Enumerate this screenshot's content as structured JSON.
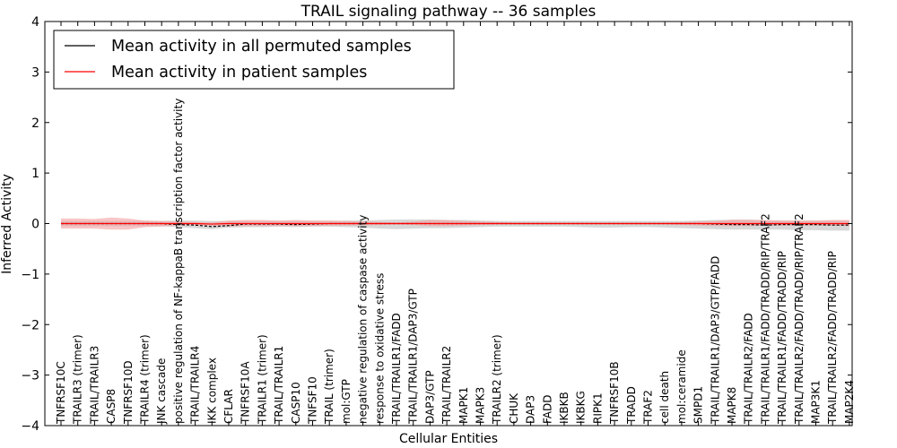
{
  "chart_data": {
    "type": "line",
    "title": "TRAIL signaling pathway -- 36 samples",
    "xlabel": "Cellular Entities",
    "ylabel": "Inferred Activity",
    "ylim": [
      -4,
      4
    ],
    "yticks": [
      -4,
      -3,
      -2,
      -1,
      0,
      1,
      2,
      3,
      4
    ],
    "ytick_labels": [
      "−4",
      "−3",
      "−2",
      "−1",
      "0",
      "1",
      "2",
      "3",
      "4"
    ],
    "grid": false,
    "legend_position": "top-left",
    "categories": [
      "TNFRSF10C",
      "TRAILR3 (trimer)",
      "TRAIL/TRAILR3",
      "CASP8",
      "TNFRSF10D",
      "TRAILR4 (trimer)",
      "JNK cascade",
      "positive regulation of NF-kappaB transcription factor activity",
      "TRAIL/TRAILR4",
      "IKK complex",
      "CFLAR",
      "TNFRSF10A",
      "TRAILR1 (trimer)",
      "TRAIL/TRAILR1",
      "CASP10",
      "TNFSF10",
      "TRAIL (trimer)",
      "mol:GTP",
      "negative regulation of caspase activity",
      "response to oxidative stress",
      "TRAIL/TRAILR1/FADD",
      "TRAIL/TRAILR1/DAP3/GTP",
      "DAP3/GTP",
      "TRAIL/TRAILR2",
      "MAPK1",
      "MAPK3",
      "TRAILR2 (trimer)",
      "CHUK",
      "DAP3",
      "FADD",
      "IKBKB",
      "IKBKG",
      "RIPK1",
      "TNFRSF10B",
      "TRADD",
      "TRAF2",
      "cell death",
      "mol:ceramide",
      "SMPD1",
      "TRAIL/TRAILR1/DAP3/GTP/FADD",
      "MAPK8",
      "TRAIL/TRAILR2/FADD",
      "TRAIL/TRAILR1/FADD/TRADD/RIP/TRAF2",
      "TRAIL/TRAILR1/FADD/TRADD/RIP",
      "TRAIL/TRAILR2/FADD/TRADD/RIP/TRAF2",
      "MAP3K1",
      "TRAIL/TRAILR2/FADD/TRADD/RIP",
      "MAP2K4"
    ],
    "series": [
      {
        "name": "Mean activity in all permuted samples",
        "color": "#000000",
        "band_color": "#c8c8c8",
        "values": [
          0,
          0,
          0,
          0,
          0,
          0,
          0,
          -0.02,
          -0.03,
          -0.06,
          -0.04,
          -0.01,
          -0.01,
          -0.01,
          -0.02,
          -0.01,
          0,
          0,
          0,
          0,
          0,
          0,
          0,
          0,
          0,
          0,
          0,
          0,
          0,
          0,
          0,
          0,
          0,
          0,
          0,
          0,
          0,
          0,
          0,
          -0.01,
          -0.02,
          -0.02,
          -0.03,
          -0.02,
          -0.02,
          -0.02,
          -0.03,
          -0.03
        ],
        "band_upper": [
          0.05,
          0.05,
          0.05,
          0.05,
          0.05,
          0.05,
          0.05,
          0.06,
          0.06,
          0.05,
          0.05,
          0.05,
          0.05,
          0.05,
          0.05,
          0.05,
          0.05,
          0.06,
          0.06,
          0.07,
          0.08,
          0.08,
          0.08,
          0.07,
          0.07,
          0.06,
          0.05,
          0.05,
          0.05,
          0.05,
          0.05,
          0.05,
          0.05,
          0.05,
          0.05,
          0.05,
          0.05,
          0.05,
          0.06,
          0.07,
          0.07,
          0.07,
          0.06,
          0.06,
          0.06,
          0.06,
          0.06,
          0.06
        ],
        "band_lower": [
          -0.05,
          -0.05,
          -0.05,
          -0.05,
          -0.05,
          -0.05,
          -0.05,
          -0.07,
          -0.09,
          -0.11,
          -0.08,
          -0.07,
          -0.07,
          -0.06,
          -0.07,
          -0.06,
          -0.06,
          -0.07,
          -0.08,
          -0.1,
          -0.11,
          -0.1,
          -0.09,
          -0.09,
          -0.08,
          -0.07,
          -0.06,
          -0.06,
          -0.06,
          -0.06,
          -0.06,
          -0.07,
          -0.08,
          -0.08,
          -0.07,
          -0.07,
          -0.08,
          -0.09,
          -0.1,
          -0.11,
          -0.12,
          -0.12,
          -0.12,
          -0.12,
          -0.13,
          -0.13,
          -0.14,
          -0.14
        ]
      },
      {
        "name": "Mean activity in patient samples",
        "color": "#ff0000",
        "band_color": "#f4a0a0",
        "values": [
          0,
          0,
          0,
          0,
          0,
          0,
          0,
          0,
          0,
          -0.01,
          0,
          0,
          0,
          0,
          0,
          0,
          0,
          0,
          0,
          0,
          0,
          0,
          0,
          0,
          0,
          0,
          0,
          0,
          0,
          0,
          0,
          0,
          0,
          0,
          0,
          0,
          0,
          0,
          0,
          0,
          0,
          0,
          0,
          0,
          0,
          0,
          0,
          0
        ],
        "band_upper": [
          0.1,
          0.1,
          0.09,
          0.12,
          0.1,
          0.06,
          0.05,
          0.04,
          0.03,
          0.02,
          0.06,
          0.07,
          0.07,
          0.06,
          0.07,
          0.06,
          0.06,
          0.05,
          0.04,
          0.03,
          0.02,
          0.04,
          0.07,
          0.07,
          0.05,
          0.04,
          0.03,
          0.02,
          0.02,
          0.02,
          0.02,
          0.02,
          0.02,
          0.02,
          0.02,
          0.02,
          0.02,
          0.03,
          0.04,
          0.05,
          0.08,
          0.08,
          0.07,
          0.06,
          0.06,
          0.06,
          0.07,
          0.07
        ],
        "band_lower": [
          -0.1,
          -0.1,
          -0.1,
          -0.12,
          -0.12,
          -0.07,
          -0.06,
          -0.04,
          -0.03,
          -0.04,
          -0.06,
          -0.05,
          -0.05,
          -0.05,
          -0.05,
          -0.05,
          -0.04,
          -0.04,
          -0.03,
          -0.03,
          -0.02,
          -0.03,
          -0.05,
          -0.05,
          -0.04,
          -0.03,
          -0.02,
          -0.02,
          -0.02,
          -0.02,
          -0.02,
          -0.02,
          -0.02,
          -0.02,
          -0.02,
          -0.02,
          -0.02,
          -0.03,
          -0.04,
          -0.05,
          -0.05,
          -0.05,
          -0.04,
          -0.04,
          -0.04,
          -0.04,
          -0.04,
          -0.05
        ]
      }
    ]
  }
}
